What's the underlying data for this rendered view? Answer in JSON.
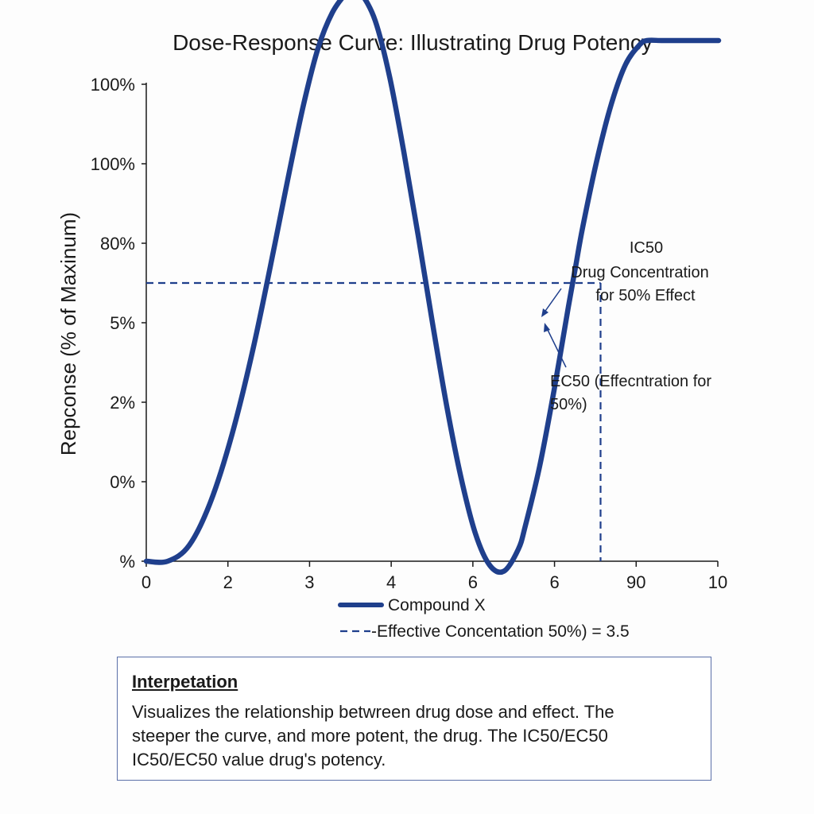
{
  "chart_data": {
    "type": "line",
    "title": "Dose-Response Curve: Illustrating Drug Potency",
    "xlabel": "",
    "ylabel": "Repconse (% of Maxinum)",
    "x_tick_labels": [
      "0",
      "2",
      "3",
      "4",
      "6",
      "6",
      "90",
      "10"
    ],
    "y_tick_labels": [
      "%",
      "0%",
      "2%",
      "5%",
      "80%",
      "100%",
      "100%"
    ],
    "grid": false,
    "series": [
      {
        "name": "Compound X",
        "color": "#1f3f8c",
        "style": "solid",
        "x": [
          0,
          0.3,
          0.6,
          0.9,
          1.2,
          1.5,
          1.8,
          2.0,
          2.2,
          2.4,
          2.6,
          2.8,
          2.9,
          3.0,
          3.2,
          3.4,
          3.6,
          3.8,
          4.0,
          4.2,
          4.4,
          4.6,
          4.8,
          5.0,
          5.2,
          5.3,
          5.5,
          5.7,
          5.9,
          6.0,
          6.1,
          6.3,
          6.5,
          6.7,
          6.9,
          7.0,
          7.2,
          7.4,
          7.6,
          7.8,
          8.0
        ],
        "y": [
          0,
          0,
          0.4,
          1.5,
          3.2,
          5.4,
          8.0,
          9.8,
          11.5,
          12.9,
          13.8,
          14.3,
          14.4,
          14.3,
          13.6,
          12.2,
          10.3,
          8.2,
          6.0,
          3.9,
          2.1,
          0.7,
          -0.1,
          -0.25,
          0.3,
          0.9,
          2.4,
          4.3,
          6.4,
          7.4,
          8.4,
          10.1,
          11.5,
          12.5,
          13.0,
          13.1,
          13.1,
          13.1,
          13.1,
          13.1,
          13.1
        ]
      }
    ],
    "reference_lines": [
      {
        "name": "Effective Concentation 50%) = 3.5",
        "style": "dashed",
        "color": "#1f3f8c",
        "y": 7.0,
        "x": 6.35
      }
    ],
    "annotations": {
      "ic50_lines": [
        "IC50",
        "Drug Concentration",
        "for 50% Effect"
      ],
      "ec50_lines": [
        "EC50 (Effecntration for",
        "50%)"
      ]
    },
    "legend": {
      "placement": "bottom",
      "entries": [
        "Compound X",
        "-Effective Concentation 50%) = 3.5"
      ]
    }
  },
  "interpretation": {
    "heading": "Interpetation",
    "lines": [
      "Visualizes the relationship betwreen drug dose and effect. The",
      "steeper the curve, and more potent, the drug. The IC50/EC50",
      "IC50/EC50 value drug's potency."
    ]
  }
}
